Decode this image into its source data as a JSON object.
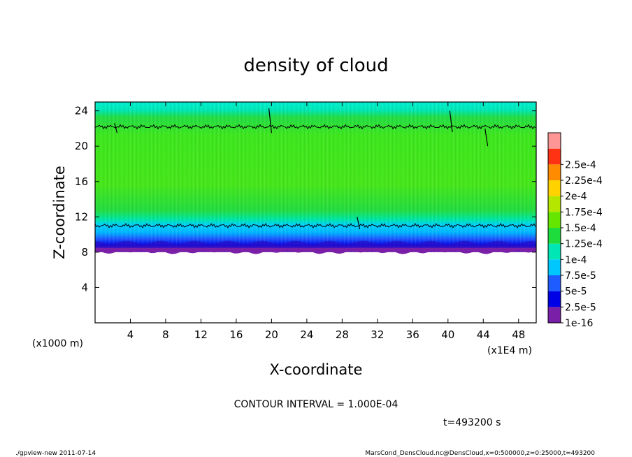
{
  "chart_data": {
    "type": "heatmap",
    "title": "density of cloud",
    "xlabel": "X-coordinate",
    "ylabel": "Z-coordinate",
    "x_unit_label": "(x1E4 m)",
    "y_unit_label": "(x1000 m)",
    "xlim": [
      0,
      50
    ],
    "ylim": [
      0,
      25
    ],
    "x_ticks": [
      4,
      8,
      12,
      16,
      20,
      24,
      28,
      32,
      36,
      40,
      44,
      48
    ],
    "y_ticks": [
      4,
      8,
      12,
      16,
      20,
      24
    ],
    "colorbar": {
      "levels": [
        "1e-16",
        "2.5e-5",
        "5e-5",
        "7.5e-5",
        "1e-4",
        "1.25e-4",
        "1.5e-4",
        "1.75e-4",
        "2e-4",
        "2.25e-4",
        "2.5e-4"
      ],
      "colors": [
        "#7a1fa8",
        "#0000e6",
        "#1e5cff",
        "#00c8ff",
        "#00e6b4",
        "#1edc3c",
        "#64e600",
        "#b4e600",
        "#ffd200",
        "#ff8c00",
        "#ff3214",
        "#ff9696"
      ]
    },
    "cloud_layer": {
      "z_bottom": 8,
      "z_top": 24.5,
      "contour_levels_z": [
        11,
        22.2
      ]
    },
    "contour_interval": "CONTOUR INTERVAL = 1.000E-04",
    "time_label": "t=493200 s"
  },
  "footer": {
    "left": "./gpview-new  2011-07-14",
    "right": "MarsCond_DensCloud.nc@DensCloud,x=0:500000,z=0:25000,t=493200"
  }
}
